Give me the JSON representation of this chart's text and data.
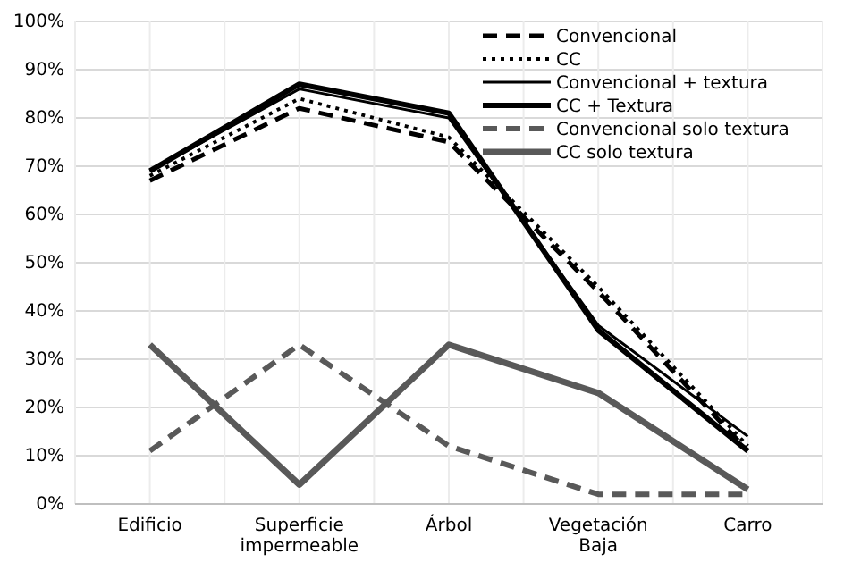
{
  "chart_data": {
    "type": "line",
    "categories": [
      "Edificio",
      "Superficie impermeable",
      "Árbol",
      "Vegetación Baja",
      "Carro"
    ],
    "ylim": [
      0,
      100
    ],
    "yticks": [
      {
        "value": 0,
        "label": "0%"
      },
      {
        "value": 10,
        "label": "10%"
      },
      {
        "value": 20,
        "label": "20%"
      },
      {
        "value": 30,
        "label": "30%"
      },
      {
        "value": 40,
        "label": "40%"
      },
      {
        "value": 50,
        "label": "50%"
      },
      {
        "value": 60,
        "label": "60%"
      },
      {
        "value": 70,
        "label": "70%"
      },
      {
        "value": 80,
        "label": "80%"
      },
      {
        "value": 90,
        "label": "90%"
      },
      {
        "value": 100,
        "label": "100%"
      }
    ],
    "grid": true,
    "legend": "top right",
    "marker": "none",
    "series": [
      {
        "name": "Convencional",
        "color": "#000000",
        "line_style": "dashed",
        "values": [
          67,
          82,
          75,
          44,
          11
        ]
      },
      {
        "name": "CC",
        "color": "#000000",
        "line_style": "dotted",
        "values": [
          68,
          84,
          76,
          45,
          12
        ]
      },
      {
        "name": "Convencional + textura",
        "color": "#000000",
        "line_style": "solid",
        "values": [
          69,
          86,
          80,
          37,
          14
        ]
      },
      {
        "name": "CC + Textura",
        "color": "#000000",
        "line_style": "solid",
        "values": [
          69,
          87,
          81,
          36,
          11
        ]
      },
      {
        "name": "Convencional solo textura",
        "color": "#595959",
        "line_style": "dashed",
        "values": [
          11,
          33,
          12,
          2,
          2
        ]
      },
      {
        "name": "CC solo textura",
        "color": "#595959",
        "line_style": "solid",
        "values": [
          33,
          4,
          33,
          23,
          3
        ]
      }
    ]
  }
}
